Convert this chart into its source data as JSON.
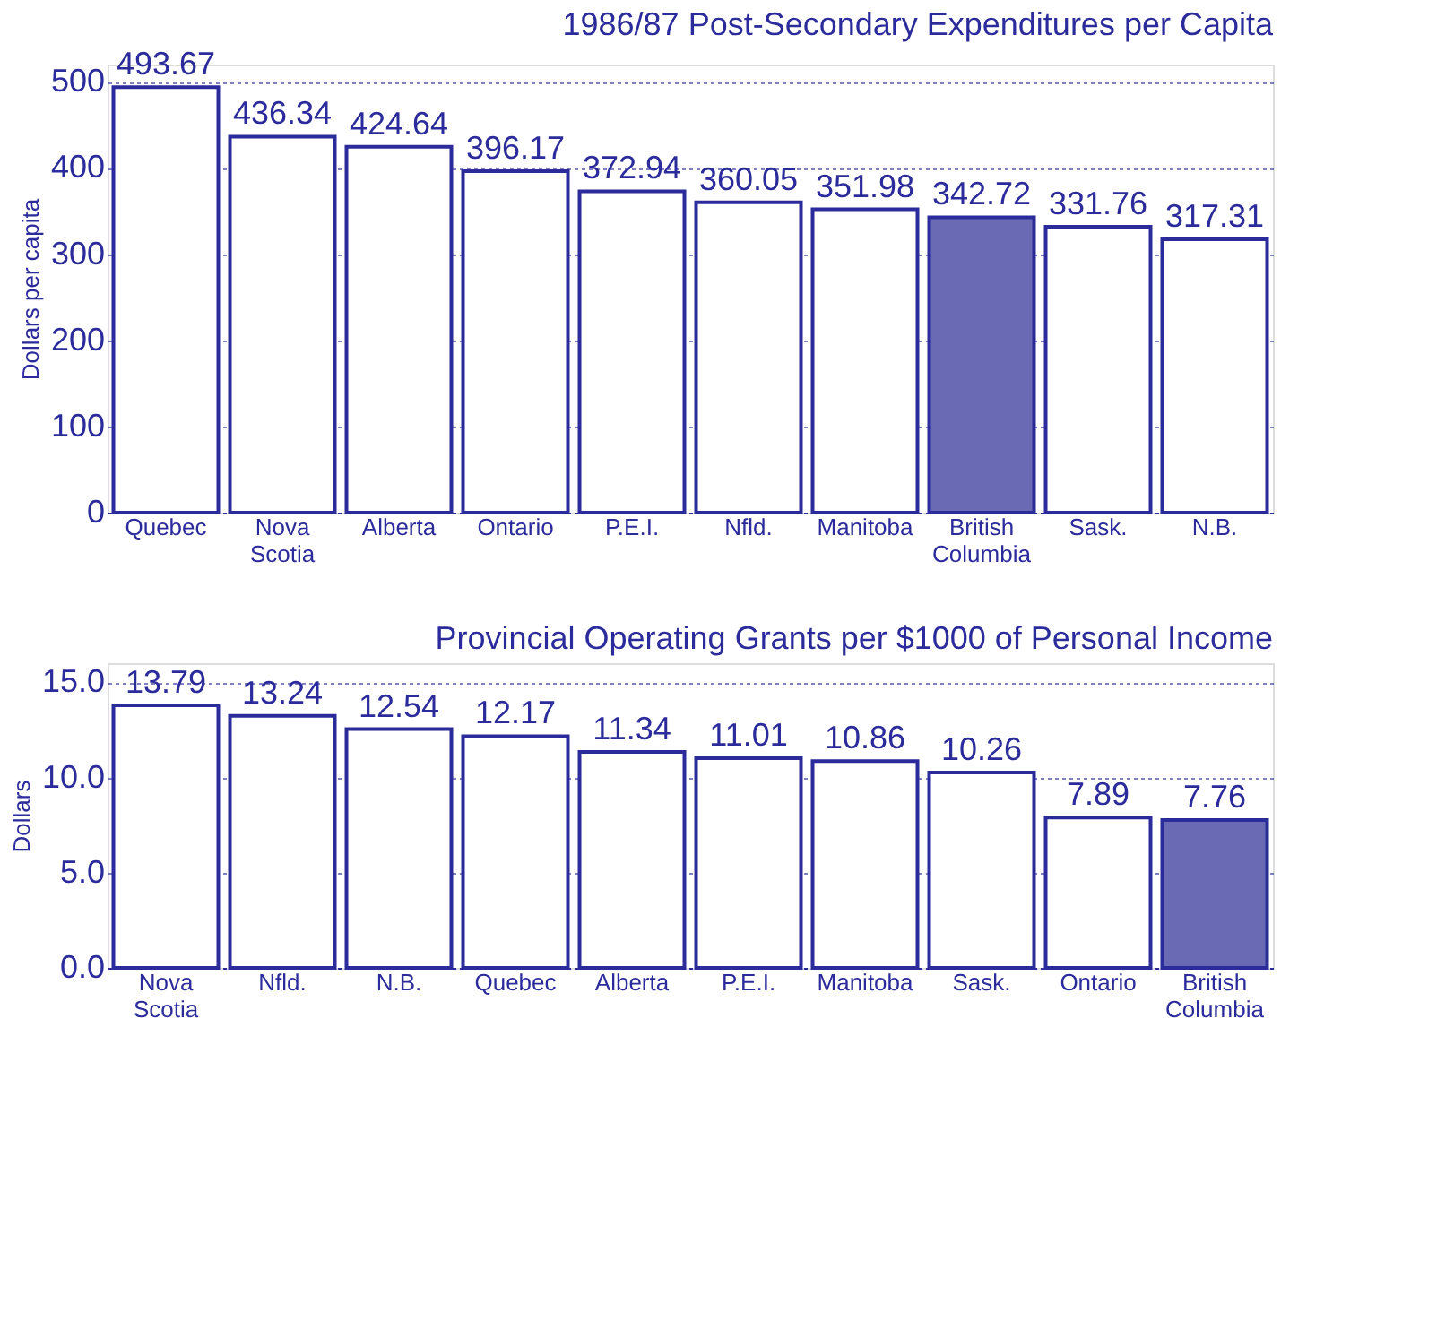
{
  "chart_data": [
    {
      "type": "bar",
      "title": "1986/87 Post-Secondary Expenditures per Capita",
      "ylabel": "Dollars per capita",
      "categories": [
        "Quebec",
        "Nova Scotia",
        "Alberta",
        "Ontario",
        "P.E.I.",
        "Nfld.",
        "Manitoba",
        "British Columbia",
        "Sask.",
        "N.B."
      ],
      "values": [
        493.67,
        436.34,
        424.64,
        396.17,
        372.94,
        360.05,
        351.98,
        342.72,
        331.76,
        317.31
      ],
      "colors": [
        "#ffffff",
        "#ffffff",
        "#ffffff",
        "#ffffff",
        "#ffffff",
        "#ffffff",
        "#ffffff",
        "#6a6ab4",
        "#ffffff",
        "#ffffff"
      ],
      "ylim": [
        0,
        520
      ],
      "yticks": [
        0,
        100,
        200,
        300,
        400,
        500
      ],
      "grid": "y",
      "data_labels": true
    },
    {
      "type": "bar",
      "title": "Provincial Operating Grants per $1000 of Personal Income",
      "ylabel": "Dollars",
      "categories": [
        "Nova Scotia",
        "Nfld.",
        "N.B.",
        "Quebec",
        "Alberta",
        "P.E.I.",
        "Manitoba",
        "Sask.",
        "Ontario",
        "British Columbia"
      ],
      "values": [
        13.79,
        13.24,
        12.54,
        12.17,
        11.34,
        11.01,
        10.86,
        10.26,
        7.89,
        7.76
      ],
      "colors": [
        "#ffffff",
        "#ffffff",
        "#ffffff",
        "#ffffff",
        "#ffffff",
        "#ffffff",
        "#ffffff",
        "#ffffff",
        "#ffffff",
        "#6a6ab4"
      ],
      "ylim": [
        0,
        16
      ],
      "yticks": [
        {
          "value": 0,
          "label": "0.0"
        },
        {
          "value": 5,
          "label": "5.0"
        },
        {
          "value": 10,
          "label": "10.0"
        },
        {
          "value": 15,
          "label": "15.0"
        }
      ],
      "grid": "y",
      "data_labels": true
    }
  ]
}
